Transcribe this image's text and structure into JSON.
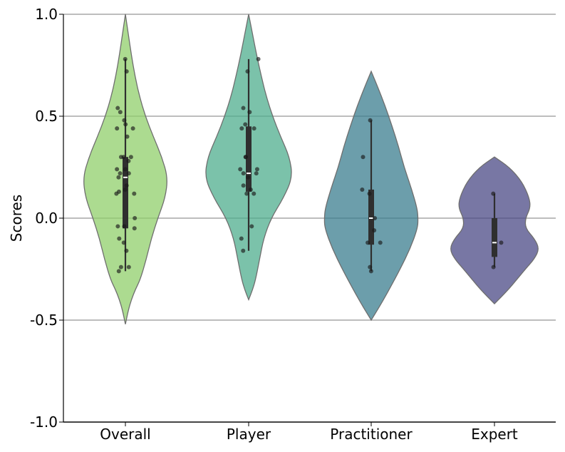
{
  "chart_data": {
    "type": "violin",
    "ylabel": "Scores",
    "xlabel": "",
    "ylim": [
      -1.0,
      1.0
    ],
    "yticks": [
      {
        "value": 1.0,
        "label": "1.0"
      },
      {
        "value": 0.5,
        "label": "0.5"
      },
      {
        "value": 0.0,
        "label": "0.0"
      },
      {
        "value": -0.5,
        "label": "-0.5"
      },
      {
        "value": -1.0,
        "label": "-1.0"
      }
    ],
    "grid": "horizontal",
    "categories": [
      "Overall",
      "Player",
      "Practitioner",
      "Expert"
    ],
    "series": [
      {
        "category": "Overall",
        "color": "#90cf6b",
        "range": [
          -0.52,
          1.0
        ],
        "profile": [
          [
            1.0,
            0.0
          ],
          [
            0.9,
            0.06
          ],
          [
            0.8,
            0.12
          ],
          [
            0.7,
            0.19
          ],
          [
            0.6,
            0.28
          ],
          [
            0.5,
            0.4
          ],
          [
            0.4,
            0.56
          ],
          [
            0.3,
            0.73
          ],
          [
            0.2,
            0.85
          ],
          [
            0.1,
            0.8
          ],
          [
            0.0,
            0.65
          ],
          [
            -0.1,
            0.52
          ],
          [
            -0.2,
            0.42
          ],
          [
            -0.3,
            0.3
          ],
          [
            -0.35,
            0.2
          ],
          [
            -0.4,
            0.12
          ],
          [
            -0.45,
            0.06
          ],
          [
            -0.52,
            0.0
          ]
        ],
        "box": {
          "q1": -0.05,
          "median": 0.2,
          "q3": 0.3,
          "min": -0.26,
          "max": 0.78
        },
        "points": [
          0.78,
          0.72,
          0.54,
          0.52,
          0.48,
          0.46,
          0.44,
          0.44,
          0.4,
          0.3,
          0.3,
          0.3,
          0.28,
          0.24,
          0.24,
          0.22,
          0.22,
          0.2,
          0.16,
          0.14,
          0.13,
          0.12,
          0.12,
          0.0,
          -0.04,
          -0.04,
          -0.05,
          -0.1,
          -0.12,
          -0.16,
          -0.24,
          -0.24,
          -0.26
        ]
      },
      {
        "category": "Player",
        "color": "#4fad8e",
        "range": [
          -0.4,
          1.0
        ],
        "profile": [
          [
            1.0,
            0.0
          ],
          [
            0.9,
            0.08
          ],
          [
            0.8,
            0.16
          ],
          [
            0.7,
            0.25
          ],
          [
            0.6,
            0.35
          ],
          [
            0.5,
            0.48
          ],
          [
            0.4,
            0.64
          ],
          [
            0.3,
            0.82
          ],
          [
            0.2,
            0.88
          ],
          [
            0.1,
            0.7
          ],
          [
            0.0,
            0.45
          ],
          [
            -0.1,
            0.3
          ],
          [
            -0.2,
            0.22
          ],
          [
            -0.3,
            0.14
          ],
          [
            -0.35,
            0.08
          ],
          [
            -0.4,
            0.0
          ]
        ],
        "box": {
          "q1": 0.13,
          "median": 0.22,
          "q3": 0.45,
          "min": -0.16,
          "max": 0.78
        },
        "points": [
          0.78,
          0.72,
          0.54,
          0.52,
          0.46,
          0.44,
          0.44,
          0.3,
          0.3,
          0.24,
          0.24,
          0.22,
          0.22,
          0.2,
          0.16,
          0.14,
          0.12,
          0.12,
          -0.04,
          -0.1,
          -0.16
        ]
      },
      {
        "category": "Practitioner",
        "color": "#3b7d8f",
        "range": [
          -0.5,
          0.72
        ],
        "profile": [
          [
            0.72,
            0.0
          ],
          [
            0.65,
            0.12
          ],
          [
            0.55,
            0.28
          ],
          [
            0.45,
            0.42
          ],
          [
            0.35,
            0.55
          ],
          [
            0.25,
            0.66
          ],
          [
            0.15,
            0.8
          ],
          [
            0.05,
            0.92
          ],
          [
            0.0,
            0.94
          ],
          [
            -0.05,
            0.93
          ],
          [
            -0.15,
            0.78
          ],
          [
            -0.25,
            0.58
          ],
          [
            -0.35,
            0.36
          ],
          [
            -0.42,
            0.2
          ],
          [
            -0.5,
            0.0
          ]
        ],
        "box": {
          "q1": -0.13,
          "median": 0.0,
          "q3": 0.14,
          "min": -0.26,
          "max": 0.48
        },
        "points": [
          0.48,
          0.3,
          0.14,
          0.12,
          0.0,
          -0.06,
          -0.12,
          -0.12,
          -0.24,
          -0.26
        ]
      },
      {
        "category": "Expert",
        "color": "#4b4a86",
        "range": [
          -0.42,
          0.3
        ],
        "profile": [
          [
            0.3,
            0.0
          ],
          [
            0.25,
            0.3
          ],
          [
            0.18,
            0.55
          ],
          [
            0.1,
            0.7
          ],
          [
            0.05,
            0.72
          ],
          [
            0.0,
            0.62
          ],
          [
            -0.05,
            0.62
          ],
          [
            -0.1,
            0.8
          ],
          [
            -0.15,
            0.9
          ],
          [
            -0.2,
            0.8
          ],
          [
            -0.25,
            0.62
          ],
          [
            -0.3,
            0.45
          ],
          [
            -0.35,
            0.28
          ],
          [
            -0.42,
            0.0
          ]
        ],
        "box": {
          "q1": -0.19,
          "median": -0.12,
          "q3": 0.0,
          "min": -0.24,
          "max": 0.12
        },
        "points": [
          0.12,
          -0.12,
          -0.24
        ]
      }
    ]
  }
}
